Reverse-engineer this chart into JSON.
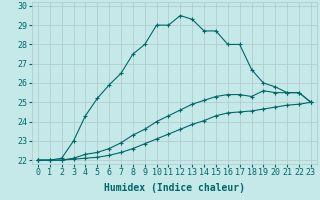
{
  "xlabel": "Humidex (Indice chaleur)",
  "background_color": "#c5e8e8",
  "grid_color": "#b0c8c8",
  "line_color": "#006868",
  "xlim": [
    -0.5,
    23.5
  ],
  "ylim": [
    21.8,
    30.2
  ],
  "xticks": [
    0,
    1,
    2,
    3,
    4,
    5,
    6,
    7,
    8,
    9,
    10,
    11,
    12,
    13,
    14,
    15,
    16,
    17,
    18,
    19,
    20,
    21,
    22,
    23
  ],
  "yticks": [
    22,
    23,
    24,
    25,
    26,
    27,
    28,
    29,
    30
  ],
  "curve1_x": [
    0,
    1,
    2,
    3,
    4,
    5,
    6,
    7,
    8,
    9,
    10,
    11,
    12,
    13,
    14,
    15,
    16,
    17,
    18,
    19,
    20,
    21,
    22,
    23
  ],
  "curve1_y": [
    22,
    22,
    22.1,
    23.0,
    24.3,
    25.2,
    25.9,
    26.5,
    27.5,
    28.0,
    29.0,
    29.0,
    29.5,
    29.3,
    28.7,
    28.7,
    28.0,
    28.0,
    26.7,
    26.0,
    25.8,
    25.5,
    25.5,
    25.0
  ],
  "curve2_x": [
    0,
    1,
    2,
    3,
    4,
    5,
    6,
    7,
    8,
    9,
    10,
    11,
    12,
    13,
    14,
    15,
    16,
    17,
    18,
    19,
    20,
    21,
    22,
    23
  ],
  "curve2_y": [
    22,
    22,
    22,
    22.1,
    22.3,
    22.4,
    22.6,
    22.9,
    23.3,
    23.6,
    24.0,
    24.3,
    24.6,
    24.9,
    25.1,
    25.3,
    25.4,
    25.4,
    25.3,
    25.6,
    25.5,
    25.5,
    25.5,
    25.0
  ],
  "curve3_x": [
    0,
    1,
    2,
    3,
    4,
    5,
    6,
    7,
    8,
    9,
    10,
    11,
    12,
    13,
    14,
    15,
    16,
    17,
    18,
    19,
    20,
    21,
    22,
    23
  ],
  "curve3_y": [
    22,
    22,
    22,
    22.05,
    22.1,
    22.15,
    22.25,
    22.4,
    22.6,
    22.85,
    23.1,
    23.35,
    23.6,
    23.85,
    24.05,
    24.3,
    24.45,
    24.5,
    24.55,
    24.65,
    24.75,
    24.85,
    24.9,
    25.0
  ],
  "marker": "+",
  "markersize": 3,
  "linewidth": 0.8,
  "xlabel_fontsize": 7,
  "tick_fontsize": 6
}
